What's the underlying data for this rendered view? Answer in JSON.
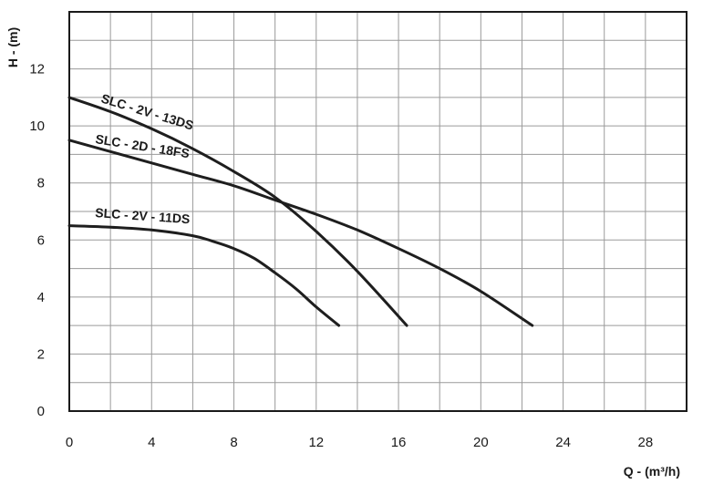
{
  "chart_data": {
    "type": "line",
    "title": "",
    "xlabel": "Q - (m³/h)",
    "ylabel": "H - (m)",
    "xlim": [
      0,
      30
    ],
    "ylim": [
      0,
      14
    ],
    "xticks": [
      0,
      4,
      8,
      12,
      16,
      20,
      24,
      28
    ],
    "yticks": [
      0,
      2,
      4,
      6,
      8,
      10,
      12
    ],
    "x_grid_step": 2,
    "y_grid_step": 1,
    "grid": true,
    "legend": "inline curve labels",
    "series": [
      {
        "name": "SLC - 2V - 13DS",
        "x": [
          0,
          2,
          4,
          6,
          8,
          10,
          12,
          14,
          16.4
        ],
        "y": [
          11,
          10.5,
          9.9,
          9.2,
          8.4,
          7.5,
          6.3,
          4.9,
          3.0
        ]
      },
      {
        "name": "SLC - 2D - 18FS",
        "x": [
          0,
          2,
          4,
          6,
          8,
          10,
          12,
          14,
          16,
          18,
          20,
          22.5
        ],
        "y": [
          9.5,
          9.1,
          8.7,
          8.3,
          7.9,
          7.4,
          6.9,
          6.35,
          5.7,
          5.0,
          4.2,
          3.0
        ]
      },
      {
        "name": "SLC - 2V - 11DS",
        "x": [
          0,
          2,
          4,
          6,
          7,
          8,
          9,
          10,
          11,
          12,
          13.1
        ],
        "y": [
          6.5,
          6.45,
          6.35,
          6.15,
          5.95,
          5.7,
          5.35,
          4.85,
          4.3,
          3.65,
          3.0
        ]
      }
    ]
  }
}
